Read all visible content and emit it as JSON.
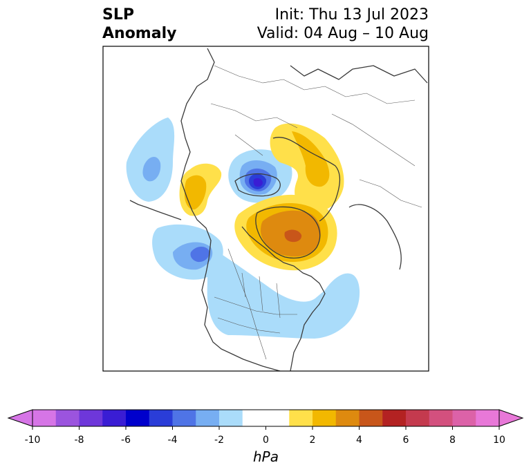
{
  "title": {
    "left_line1": "SLP",
    "left_line2": "Anomaly",
    "right_line1": "Init: Thu 13 Jul 2023",
    "right_line2": "Valid: 04 Aug – 10 Aug"
  },
  "colorbar": {
    "unit": "hPa",
    "tick_labels": [
      "-10",
      "-8",
      "-6",
      "-4",
      "-2",
      "0",
      "2",
      "4",
      "6",
      "8",
      "10"
    ],
    "bins": [
      {
        "from": -10,
        "to": -9,
        "color": "#d675e6"
      },
      {
        "from": -9,
        "to": -8,
        "color": "#9b54de"
      },
      {
        "from": -8,
        "to": -7,
        "color": "#6e37da"
      },
      {
        "from": -7,
        "to": -6,
        "color": "#3a1dd4"
      },
      {
        "from": -6,
        "to": -5,
        "color": "#0000cc"
      },
      {
        "from": -5,
        "to": -4,
        "color": "#2a3dd8"
      },
      {
        "from": -4,
        "to": -3,
        "color": "#4f74e6"
      },
      {
        "from": -3,
        "to": -2,
        "color": "#77aef2"
      },
      {
        "from": -2,
        "to": -1,
        "color": "#aadcfa"
      },
      {
        "from": -1,
        "to": 1,
        "color": "#ffffff"
      },
      {
        "from": 1,
        "to": 2,
        "color": "#ffe04a"
      },
      {
        "from": 2,
        "to": 3,
        "color": "#f2b800"
      },
      {
        "from": 3,
        "to": 4,
        "color": "#de8a0f"
      },
      {
        "from": 4,
        "to": 5,
        "color": "#c8561a"
      },
      {
        "from": 5,
        "to": 6,
        "color": "#b32222"
      },
      {
        "from": 6,
        "to": 7,
        "color": "#c43a4e"
      },
      {
        "from": 7,
        "to": 8,
        "color": "#d3507e"
      },
      {
        "from": 8,
        "to": 9,
        "color": "#dc62a8"
      },
      {
        "from": 9,
        "to": 10,
        "color": "#e878d8"
      }
    ],
    "extend_low_color": "#d675e6",
    "extend_high_color": "#e878d8"
  }
}
